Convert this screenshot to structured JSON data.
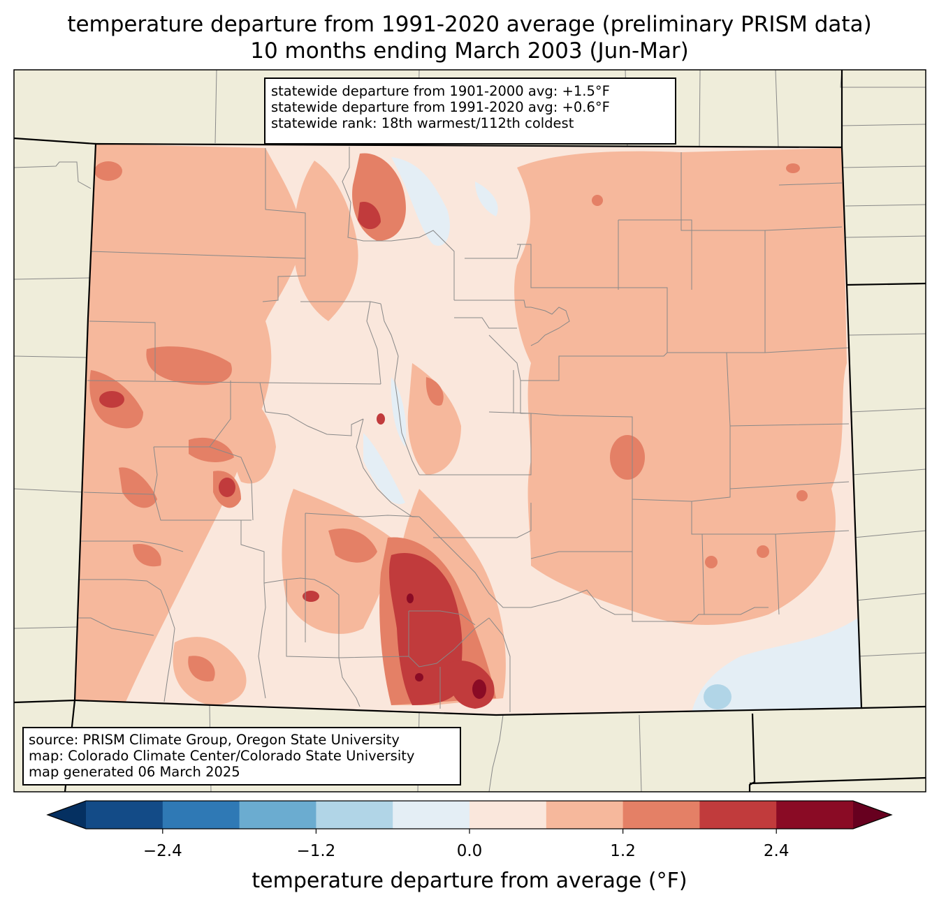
{
  "title": {
    "line1": "temperature departure from 1991-2020 average (preliminary PRISM data)",
    "line2": "10 months ending March 2003 (Jun-Mar)"
  },
  "stats": {
    "line1": "statewide departure from 1901-2000 avg: +1.5°F",
    "line2": "statewide departure from 1991-2020 avg: +0.6°F",
    "line3": "statewide rank: 18th warmest/112th coldest"
  },
  "source": {
    "line1": "source: PRISM Climate Group, Oregon State University",
    "line2": "map: Colorado Climate Center/Colorado State University",
    "line3": "map generated 06 March 2025"
  },
  "colorbar": {
    "label": "temperature departure from average (°F)",
    "ticks": [
      "−2.4",
      "−1.2",
      "0.0",
      "1.2",
      "2.4"
    ],
    "tick_values": [
      -2.4,
      -1.2,
      0.0,
      1.2,
      2.4
    ],
    "range": [
      -3.0,
      3.0
    ],
    "bins": [
      {
        "lo": -3.0,
        "hi": -2.4,
        "color": "#134b87"
      },
      {
        "lo": -2.4,
        "hi": -1.8,
        "color": "#2f79b5"
      },
      {
        "lo": -1.8,
        "hi": -1.2,
        "color": "#6bacd0"
      },
      {
        "lo": -1.2,
        "hi": -0.6,
        "color": "#b1d5e7"
      },
      {
        "lo": -0.6,
        "hi": 0.0,
        "color": "#e4eef5"
      },
      {
        "lo": 0.0,
        "hi": 0.6,
        "color": "#fae7dc"
      },
      {
        "lo": 0.6,
        "hi": 1.2,
        "color": "#f6b89c"
      },
      {
        "lo": 1.2,
        "hi": 1.8,
        "color": "#e48066"
      },
      {
        "lo": 1.8,
        "hi": 2.4,
        "color": "#c13b3c"
      },
      {
        "lo": 2.4,
        "hi": 3.0,
        "color": "#8a0b25"
      }
    ],
    "under_color": "#053061",
    "over_color": "#67001f"
  },
  "colors": {
    "land": "#efedda",
    "base_fill": "#fae7dc",
    "county_line": "#888888",
    "state_line": "#000000"
  }
}
